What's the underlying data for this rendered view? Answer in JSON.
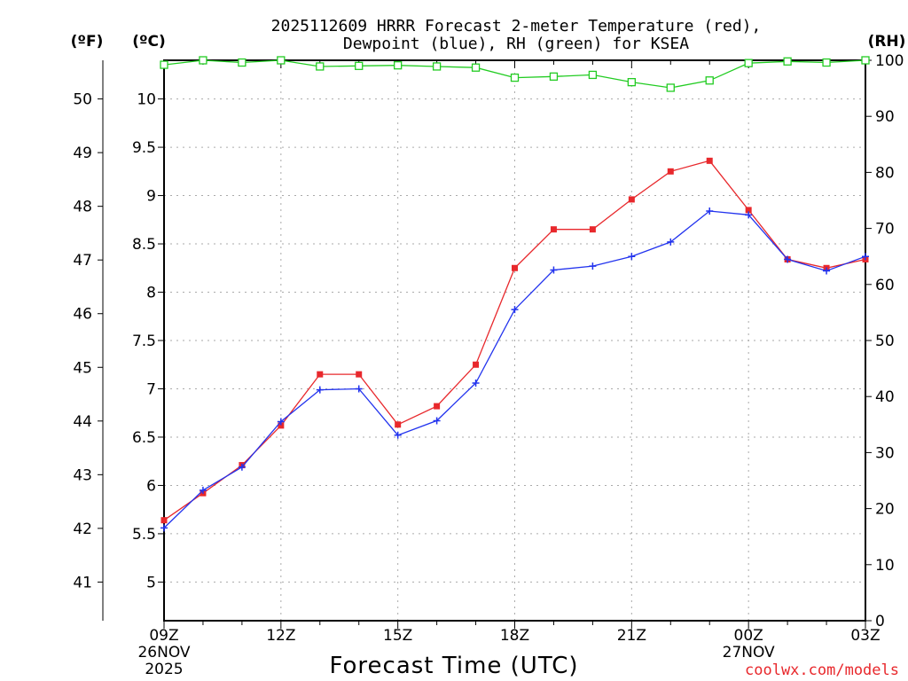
{
  "chart_data": {
    "type": "line",
    "title": "2025112609 HRRR Forecast 2-meter Temperature (red),",
    "subtitle": "Dewpoint (blue), RH (green) for KSEA",
    "xlabel": "Forecast Time (UTC)",
    "credit": "coolwx.com/models",
    "units": {
      "fahrenheit": "(ºF)",
      "celsius": "(ºC)",
      "rh": "(RH)"
    },
    "hours": [
      9,
      10,
      11,
      12,
      13,
      14,
      15,
      16,
      17,
      18,
      19,
      20,
      21,
      22,
      23,
      24,
      25,
      26,
      27
    ],
    "x_ticks": [
      {
        "hour": 9,
        "label": "09Z",
        "date": "26NOV",
        "year": "2025"
      },
      {
        "hour": 12,
        "label": "12Z",
        "date": "",
        "year": ""
      },
      {
        "hour": 15,
        "label": "15Z",
        "date": "",
        "year": ""
      },
      {
        "hour": 18,
        "label": "18Z",
        "date": "",
        "year": ""
      },
      {
        "hour": 21,
        "label": "21Z",
        "date": "",
        "year": ""
      },
      {
        "hour": 24,
        "label": "00Z",
        "date": "27NOV",
        "year": ""
      },
      {
        "hour": 27,
        "label": "03Z",
        "date": "",
        "year": ""
      }
    ],
    "ylim_celsius": [
      4.6,
      10.4
    ],
    "y_ticks_celsius": [
      "5",
      "5.5",
      "6",
      "6.5",
      "7",
      "7.5",
      "8",
      "8.5",
      "9",
      "9.5",
      "10"
    ],
    "y_ticks_fahrenheit": [
      "41",
      "42",
      "43",
      "44",
      "45",
      "46",
      "47",
      "48",
      "49",
      "50"
    ],
    "ylim_rh": [
      0,
      100
    ],
    "y_ticks_rh": [
      "0",
      "10",
      "20",
      "30",
      "40",
      "50",
      "60",
      "70",
      "80",
      "90",
      "100"
    ],
    "series": [
      {
        "name": "Temperature",
        "axis": "celsius",
        "color": "#e8282c",
        "marker": "filled-square",
        "values": [
          5.64,
          5.92,
          6.21,
          6.62,
          7.15,
          7.15,
          6.63,
          6.82,
          7.25,
          8.25,
          8.65,
          8.65,
          8.96,
          9.25,
          9.36,
          8.85,
          8.34,
          8.25,
          8.34
        ]
      },
      {
        "name": "Dewpoint",
        "axis": "celsius",
        "color": "#2233ee",
        "marker": "plus",
        "values": [
          5.56,
          5.95,
          6.19,
          6.66,
          6.99,
          7.0,
          6.52,
          6.67,
          7.06,
          7.82,
          8.23,
          8.27,
          8.37,
          8.52,
          8.84,
          8.8,
          8.34,
          8.22,
          8.37
        ]
      },
      {
        "name": "RH",
        "axis": "rh",
        "color": "#22cc22",
        "marker": "open-square",
        "values": [
          99.2,
          100,
          99.6,
          100,
          98.9,
          99.0,
          99.1,
          98.9,
          98.7,
          96.9,
          97.1,
          97.4,
          96.1,
          95.1,
          96.4,
          99.5,
          99.8,
          99.6,
          100
        ]
      }
    ]
  }
}
